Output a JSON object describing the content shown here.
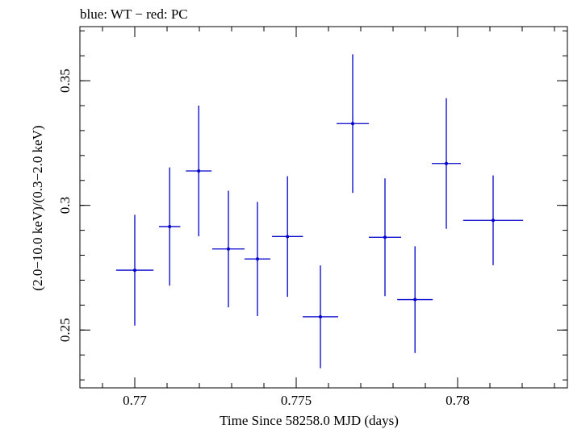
{
  "chart_data": {
    "type": "scatter",
    "title": "blue: WT − red: PC",
    "xlabel": "Time Since 58258.0 MJD (days)",
    "ylabel": "(2.0−10.0 keV)/(0.3−2.0 keV)",
    "xlim": [
      0.7683,
      0.7834
    ],
    "ylim": [
      0.2268,
      0.3717
    ],
    "x_ticks": [
      {
        "value": 0.77,
        "label": "0.77"
      },
      {
        "value": 0.775,
        "label": "0.775"
      },
      {
        "value": 0.78,
        "label": "0.78"
      }
    ],
    "y_ticks": [
      {
        "value": 0.25,
        "label": "0.25"
      },
      {
        "value": 0.3,
        "label": "0.3"
      },
      {
        "value": 0.35,
        "label": "0.35"
      }
    ],
    "x_minor_step": 0.001,
    "y_minor_step": 0.01,
    "grid": false,
    "series": [
      {
        "color": "#0000cc",
        "points": [
          {
            "x": 0.77,
            "xerr": 0.00058,
            "y": 0.274,
            "yerr": 0.0222
          },
          {
            "x": 0.77108,
            "xerr": 0.00033,
            "y": 0.2915,
            "yerr": 0.0237
          },
          {
            "x": 0.77198,
            "xerr": 0.0004,
            "y": 0.3138,
            "yerr": 0.0262
          },
          {
            "x": 0.7729,
            "xerr": 0.0005,
            "y": 0.2825,
            "yerr": 0.0234
          },
          {
            "x": 0.7738,
            "xerr": 0.0004,
            "y": 0.2785,
            "yerr": 0.0229
          },
          {
            "x": 0.77473,
            "xerr": 0.00048,
            "y": 0.2875,
            "yerr": 0.0242
          },
          {
            "x": 0.77575,
            "xerr": 0.00055,
            "y": 0.2553,
            "yerr": 0.0206
          },
          {
            "x": 0.77675,
            "xerr": 0.0005,
            "y": 0.3328,
            "yerr": 0.0278
          },
          {
            "x": 0.77775,
            "xerr": 0.0005,
            "y": 0.2872,
            "yerr": 0.0236
          },
          {
            "x": 0.77868,
            "xerr": 0.00055,
            "y": 0.2622,
            "yerr": 0.0214
          },
          {
            "x": 0.77965,
            "xerr": 0.00045,
            "y": 0.3168,
            "yerr": 0.0262
          },
          {
            "x": 0.7811,
            "xerr": 0.00093,
            "y": 0.294,
            "yerr": 0.018
          }
        ]
      }
    ]
  }
}
